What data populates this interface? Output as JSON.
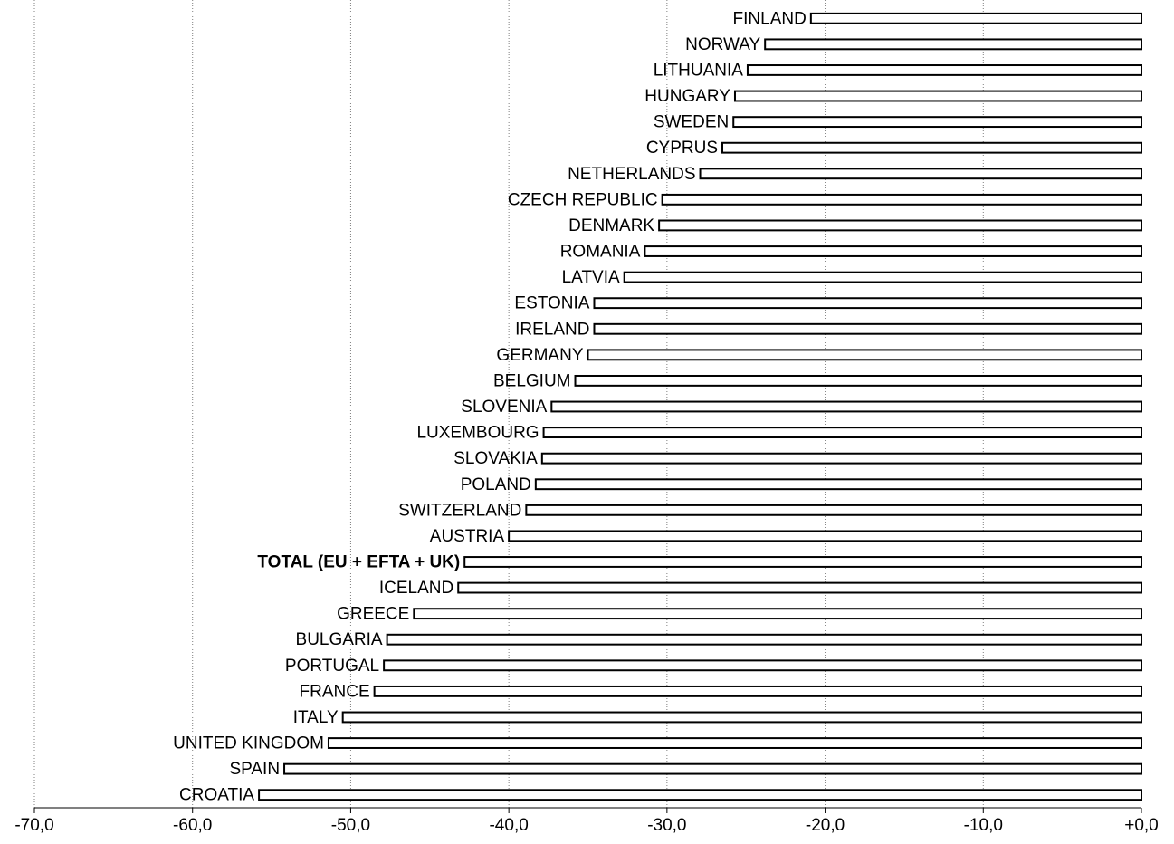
{
  "chart_data": {
    "type": "bar",
    "orientation": "horizontal",
    "title": "",
    "xlabel": "",
    "ylabel": "",
    "xlim": [
      -70,
      0
    ],
    "grid": true,
    "legend": "none",
    "bar_fill": "#ffffff",
    "bar_stroke": "#000000",
    "x_ticks": [
      {
        "value": -70,
        "label": "-70,0"
      },
      {
        "value": -60,
        "label": "-60,0"
      },
      {
        "value": -50,
        "label": "-50,0"
      },
      {
        "value": -40,
        "label": "-40,0"
      },
      {
        "value": -30,
        "label": "-30,0"
      },
      {
        "value": -20,
        "label": "-20,0"
      },
      {
        "value": -10,
        "label": "-10,0"
      },
      {
        "value": 0,
        "label": "+0,0"
      }
    ],
    "categories": [
      "FINLAND",
      "NORWAY",
      "LITHUANIA",
      "HUNGARY",
      "SWEDEN",
      "CYPRUS",
      "NETHERLANDS",
      "CZECH REPUBLIC",
      "DENMARK",
      "ROMANIA",
      "LATVIA",
      "ESTONIA",
      "IRELAND",
      "GERMANY",
      "BELGIUM",
      "SLOVENIA",
      "LUXEMBOURG",
      "SLOVAKIA",
      "POLAND",
      "SWITZERLAND",
      "AUSTRIA",
      "TOTAL (EU + EFTA + UK)",
      "ICELAND",
      "GREECE",
      "BULGARIA",
      "PORTUGAL",
      "FRANCE",
      "ITALY",
      "UNITED KINGDOM",
      "SPAIN",
      "CROATIA"
    ],
    "values": [
      -20.9,
      -23.8,
      -24.9,
      -25.7,
      -25.8,
      -26.5,
      -27.9,
      -30.3,
      -30.5,
      -31.4,
      -32.7,
      -34.6,
      -34.6,
      -35.0,
      -35.8,
      -37.3,
      -37.8,
      -37.9,
      -38.3,
      -38.9,
      -40.0,
      -42.8,
      -43.2,
      -46.0,
      -47.7,
      -47.9,
      -48.5,
      -50.5,
      -51.4,
      -54.2,
      -55.8
    ],
    "highlight_category": "TOTAL (EU + EFTA + UK)"
  }
}
